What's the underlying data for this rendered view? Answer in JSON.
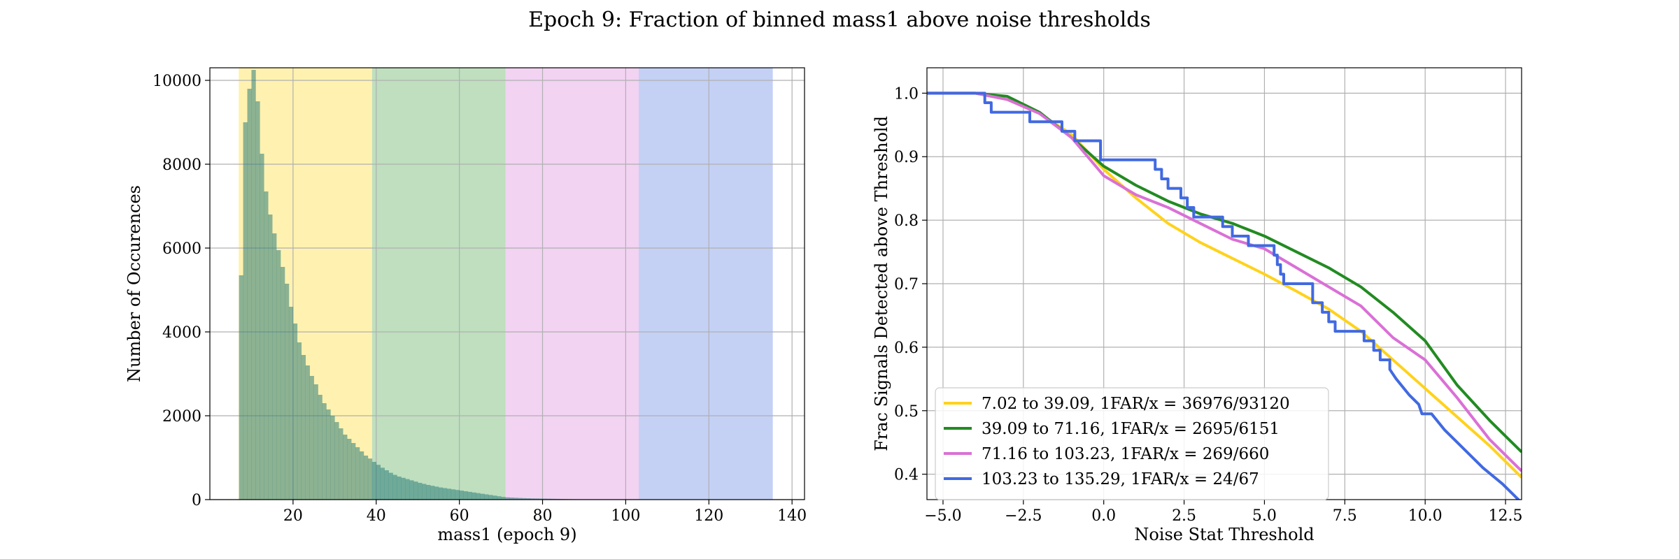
{
  "figure": {
    "suptitle": "Epoch 9: Fraction of binned mass1 above noise thresholds"
  },
  "chart_data": [
    {
      "type": "bar",
      "subtype": "histogram",
      "xlabel": "mass1 (epoch 9)",
      "ylabel": "Number of Occurences",
      "xlim": [
        0,
        143
      ],
      "ylim": [
        0,
        10300
      ],
      "xticks": [
        20,
        40,
        60,
        80,
        100,
        120,
        140
      ],
      "yticks": [
        0,
        2000,
        4000,
        6000,
        8000,
        10000
      ],
      "grid": true,
      "bands": [
        {
          "from": 7.02,
          "to": 39.09,
          "color": "#fff2b0"
        },
        {
          "from": 39.09,
          "to": 71.16,
          "color": "#bfdfbf"
        },
        {
          "from": 71.16,
          "to": 103.23,
          "color": "#f2d3f2"
        },
        {
          "from": 103.23,
          "to": 135.29,
          "color": "#c4d1f5"
        }
      ],
      "bar_color": "#2e7d7a",
      "bin_start": 7.0,
      "bin_width": 1.0,
      "values": [
        5350,
        9000,
        9800,
        10250,
        9500,
        8250,
        7350,
        6800,
        6350,
        5950,
        5550,
        5150,
        4600,
        4200,
        3750,
        3450,
        3200,
        2950,
        2750,
        2500,
        2300,
        2150,
        2000,
        1850,
        1700,
        1550,
        1450,
        1350,
        1250,
        1150,
        1050,
        980,
        900,
        830,
        760,
        700,
        640,
        590,
        550,
        520,
        490,
        460,
        430,
        400,
        375,
        350,
        330,
        310,
        290,
        275,
        260,
        245,
        230,
        215,
        200,
        185,
        170,
        155,
        140,
        125,
        110,
        95,
        80,
        65,
        55,
        50,
        45,
        40,
        36,
        33,
        30,
        28,
        26,
        24,
        22,
        20,
        18,
        16,
        14,
        12,
        10,
        9,
        8,
        7,
        6,
        5,
        5,
        4,
        4,
        3,
        3,
        3,
        2,
        2,
        2,
        2
      ]
    },
    {
      "type": "line",
      "xlabel": "Noise Stat Threshold",
      "ylabel": "Frac Signals Detected above Threshold",
      "xlim": [
        -5.5,
        13
      ],
      "ylim": [
        0.36,
        1.04
      ],
      "xticks": [
        -5.0,
        -2.5,
        0.0,
        2.5,
        5.0,
        7.5,
        10.0,
        12.5
      ],
      "yticks": [
        0.4,
        0.5,
        0.6,
        0.7,
        0.8,
        0.9,
        1.0
      ],
      "grid": true,
      "legend_position": "lower-left",
      "series": [
        {
          "name": "7.02 to 39.09, 1FAR/x = 36976/93120",
          "color": "#ffd21c",
          "step": false,
          "points": [
            [
              -5.5,
              1.0
            ],
            [
              -4.0,
              1.0
            ],
            [
              -3.0,
              0.99
            ],
            [
              -2.0,
              0.968
            ],
            [
              -1.0,
              0.935
            ],
            [
              0.0,
              0.88
            ],
            [
              1.0,
              0.835
            ],
            [
              2.0,
              0.795
            ],
            [
              3.0,
              0.765
            ],
            [
              4.0,
              0.74
            ],
            [
              5.0,
              0.715
            ],
            [
              6.0,
              0.688
            ],
            [
              7.0,
              0.66
            ],
            [
              8.0,
              0.625
            ],
            [
              9.0,
              0.58
            ],
            [
              10.0,
              0.535
            ],
            [
              11.0,
              0.49
            ],
            [
              12.0,
              0.445
            ],
            [
              13.0,
              0.395
            ]
          ]
        },
        {
          "name": "39.09 to 71.16, 1FAR/x = 2695/6151",
          "color": "#228b22",
          "step": false,
          "points": [
            [
              -5.5,
              1.0
            ],
            [
              -4.0,
              1.0
            ],
            [
              -3.0,
              0.995
            ],
            [
              -2.0,
              0.97
            ],
            [
              -1.0,
              0.93
            ],
            [
              0.0,
              0.885
            ],
            [
              1.0,
              0.855
            ],
            [
              2.0,
              0.83
            ],
            [
              3.0,
              0.81
            ],
            [
              4.0,
              0.795
            ],
            [
              5.0,
              0.775
            ],
            [
              6.0,
              0.75
            ],
            [
              7.0,
              0.725
            ],
            [
              8.0,
              0.695
            ],
            [
              9.0,
              0.655
            ],
            [
              10.0,
              0.61
            ],
            [
              11.0,
              0.54
            ],
            [
              12.0,
              0.485
            ],
            [
              13.0,
              0.435
            ]
          ]
        },
        {
          "name": "71.16 to 103.23, 1FAR/x = 269/660",
          "color": "#da70d6",
          "step": false,
          "points": [
            [
              -5.5,
              1.0
            ],
            [
              -4.0,
              1.0
            ],
            [
              -3.0,
              0.99
            ],
            [
              -2.0,
              0.968
            ],
            [
              -1.0,
              0.93
            ],
            [
              0.0,
              0.87
            ],
            [
              1.0,
              0.84
            ],
            [
              2.0,
              0.82
            ],
            [
              3.0,
              0.795
            ],
            [
              4.0,
              0.77
            ],
            [
              5.0,
              0.755
            ],
            [
              6.0,
              0.725
            ],
            [
              7.0,
              0.695
            ],
            [
              8.0,
              0.665
            ],
            [
              9.0,
              0.615
            ],
            [
              10.0,
              0.58
            ],
            [
              11.0,
              0.52
            ],
            [
              12.0,
              0.455
            ],
            [
              13.0,
              0.405
            ]
          ]
        },
        {
          "name": "103.23 to 135.29, 1FAR/x = 24/67",
          "color": "#4169e1",
          "step": true,
          "points": [
            [
              -5.5,
              1.0
            ],
            [
              -3.7,
              1.0
            ],
            [
              -3.7,
              0.985
            ],
            [
              -3.5,
              0.985
            ],
            [
              -3.5,
              0.97
            ],
            [
              -2.3,
              0.97
            ],
            [
              -2.3,
              0.955
            ],
            [
              -1.3,
              0.955
            ],
            [
              -1.3,
              0.94
            ],
            [
              -0.9,
              0.94
            ],
            [
              -0.9,
              0.925
            ],
            [
              -0.1,
              0.925
            ],
            [
              -0.1,
              0.895
            ],
            [
              1.6,
              0.895
            ],
            [
              1.6,
              0.88
            ],
            [
              1.8,
              0.88
            ],
            [
              1.8,
              0.865
            ],
            [
              2.0,
              0.865
            ],
            [
              2.0,
              0.85
            ],
            [
              2.4,
              0.85
            ],
            [
              2.4,
              0.835
            ],
            [
              2.6,
              0.835
            ],
            [
              2.6,
              0.82
            ],
            [
              2.8,
              0.82
            ],
            [
              2.8,
              0.805
            ],
            [
              3.7,
              0.805
            ],
            [
              3.7,
              0.79
            ],
            [
              4.0,
              0.79
            ],
            [
              4.0,
              0.775
            ],
            [
              4.5,
              0.775
            ],
            [
              4.5,
              0.76
            ],
            [
              5.3,
              0.76
            ],
            [
              5.3,
              0.745
            ],
            [
              5.4,
              0.745
            ],
            [
              5.4,
              0.73
            ],
            [
              5.5,
              0.73
            ],
            [
              5.5,
              0.715
            ],
            [
              5.6,
              0.715
            ],
            [
              5.6,
              0.7
            ],
            [
              6.5,
              0.7
            ],
            [
              6.5,
              0.67
            ],
            [
              6.8,
              0.67
            ],
            [
              6.8,
              0.655
            ],
            [
              7.0,
              0.655
            ],
            [
              7.0,
              0.64
            ],
            [
              7.2,
              0.64
            ],
            [
              7.2,
              0.625
            ],
            [
              8.1,
              0.625
            ],
            [
              8.1,
              0.61
            ],
            [
              8.4,
              0.61
            ],
            [
              8.4,
              0.595
            ],
            [
              8.6,
              0.595
            ],
            [
              8.6,
              0.58
            ],
            [
              8.9,
              0.58
            ],
            [
              8.9,
              0.565
            ],
            [
              9.1,
              0.55
            ],
            [
              9.5,
              0.525
            ],
            [
              9.8,
              0.51
            ],
            [
              9.9,
              0.495
            ],
            [
              10.2,
              0.495
            ],
            [
              10.6,
              0.47
            ],
            [
              11.2,
              0.44
            ],
            [
              11.8,
              0.41
            ],
            [
              12.4,
              0.385
            ],
            [
              13.0,
              0.355
            ]
          ]
        }
      ]
    }
  ]
}
